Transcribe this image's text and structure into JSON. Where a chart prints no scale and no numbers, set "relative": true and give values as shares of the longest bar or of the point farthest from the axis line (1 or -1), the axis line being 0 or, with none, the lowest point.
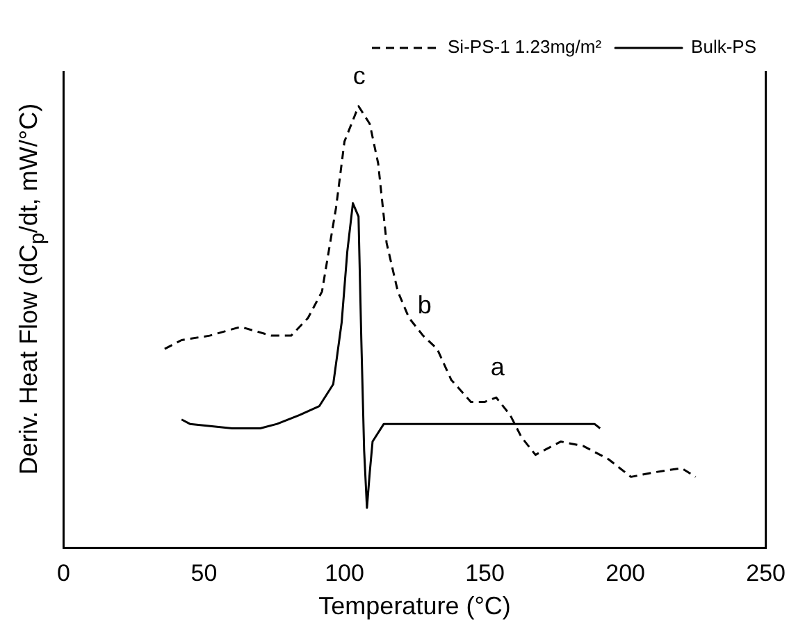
{
  "chart_data": {
    "type": "line",
    "relative": true,
    "xlabel": "Temperature (°C)",
    "ylabel": "Deriv. Heat Flow (dC$_{p}$/dt, mW/°C)",
    "xlim": [
      0,
      250
    ],
    "xticks": [
      0,
      50,
      100,
      150,
      200,
      250
    ],
    "grid": false,
    "legend": "top right",
    "marker": "none",
    "series": [
      {
        "name": "Si-PS-1 1.23mg/m²",
        "color": "#000000",
        "line_style": "dashed",
        "x": [
          36,
          42,
          52,
          63,
          74,
          81,
          87,
          92,
          97,
          100,
          105,
          109,
          112,
          115,
          119,
          123,
          128,
          133,
          138,
          145,
          150,
          154,
          159,
          163,
          168,
          174,
          177,
          185,
          194,
          202,
          210,
          220,
          225
        ],
        "values": [
          0.45,
          0.47,
          0.48,
          0.5,
          0.48,
          0.48,
          0.52,
          0.58,
          0.77,
          0.92,
          1.0,
          0.96,
          0.87,
          0.69,
          0.58,
          0.52,
          0.48,
          0.45,
          0.38,
          0.33,
          0.33,
          0.34,
          0.3,
          0.25,
          0.21,
          0.23,
          0.24,
          0.23,
          0.2,
          0.16,
          0.17,
          0.18,
          0.16
        ]
      },
      {
        "name": "Bulk-PS",
        "color": "#000000",
        "line_style": "solid",
        "x": [
          42,
          45,
          60,
          70,
          76,
          84,
          91,
          96,
          99,
          101,
          103,
          105,
          106,
          107,
          108,
          109,
          110,
          114,
          117,
          128,
          145,
          161,
          174,
          189,
          191
        ],
        "values": [
          0.29,
          0.28,
          0.27,
          0.27,
          0.28,
          0.3,
          0.32,
          0.37,
          0.51,
          0.67,
          0.78,
          0.75,
          0.47,
          0.22,
          0.09,
          0.17,
          0.24,
          0.28,
          0.28,
          0.28,
          0.28,
          0.28,
          0.28,
          0.28,
          0.27
        ]
      }
    ],
    "annotations": [
      {
        "text": "c",
        "x": 105,
        "y": 1.0
      },
      {
        "text": "b",
        "x": 128,
        "y": 0.48
      },
      {
        "text": "a",
        "x": 154,
        "y": 0.34
      }
    ]
  }
}
